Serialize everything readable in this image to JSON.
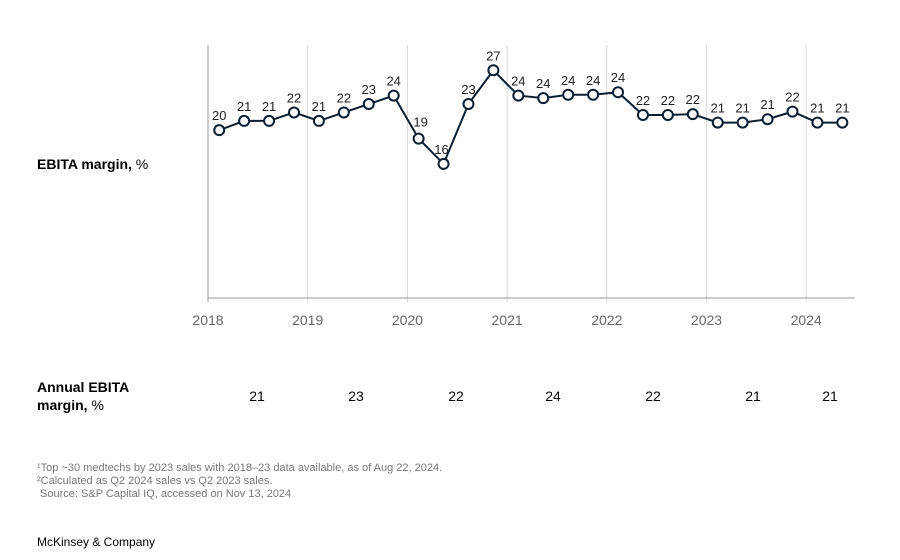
{
  "chart_data": {
    "type": "line",
    "title": "",
    "ylabel": "EBITA margin, %",
    "ylabel_bold": "EBITA margin,",
    "ylabel_unit": " %",
    "xlabel": "",
    "ylim": [
      0,
      30
    ],
    "grid": "vertical lines at year boundaries",
    "x_tick_labels": [
      "2018",
      "2019",
      "2020",
      "2021",
      "2022",
      "2023",
      "2024"
    ],
    "x": [
      "Q2 2018",
      "Q3 2018",
      "Q4 2018",
      "Q1 2019",
      "Q2 2019",
      "Q3 2019",
      "Q4 2019",
      "Q1 2020",
      "Q2 2020",
      "Q3 2020",
      "Q4 2020",
      "Q1 2021",
      "Q2 2021",
      "Q3 2021",
      "Q4 2021",
      "Q1 2022",
      "Q2 2022",
      "Q3 2022",
      "Q4 2022",
      "Q1 2023",
      "Q2 2023",
      "Q3 2023",
      "Q4 2023",
      "Q1 2024",
      "Q2 2024",
      "Q3 2024"
    ],
    "values": [
      19.9,
      21.0,
      21.0,
      22.0,
      21.0,
      22.0,
      23.0,
      24.0,
      18.9,
      15.9,
      23.0,
      27.0,
      24.0,
      23.7,
      24.1,
      24.1,
      24.4,
      21.7,
      21.7,
      21.8,
      20.8,
      20.8,
      21.2,
      22.1,
      20.8,
      20.8
    ],
    "data_labels": [
      "20",
      "21",
      "21",
      "22",
      "21",
      "22",
      "23",
      "24",
      "19",
      "16",
      "23",
      "27",
      "24",
      "24",
      "24",
      "24",
      "24",
      "22",
      "22",
      "22",
      "21",
      "21",
      "21",
      "22",
      "21",
      "21"
    ],
    "annual": {
      "label_bold": "Annual EBITA margin,",
      "label_unit": " %",
      "years": [
        "2018",
        "2019",
        "2020",
        "2021",
        "2022",
        "2023",
        "2024"
      ],
      "values": [
        "21",
        "23",
        "22",
        "24",
        "22",
        "21",
        "21"
      ]
    }
  },
  "footnotes": [
    "¹Top ~30 medtechs by 2023 sales with 2018–23 data available, as of Aug 22, 2024.",
    "²Calculated as Q2 2024 sales vs Q2 2023 sales.",
    " Source: S&P Capital IQ, accessed on Nov 13, 2024"
  ],
  "brand": "McKinsey & Company",
  "colors": {
    "line": "#0b1f33",
    "grid": "#d9d9d9",
    "axis": "#999999"
  }
}
